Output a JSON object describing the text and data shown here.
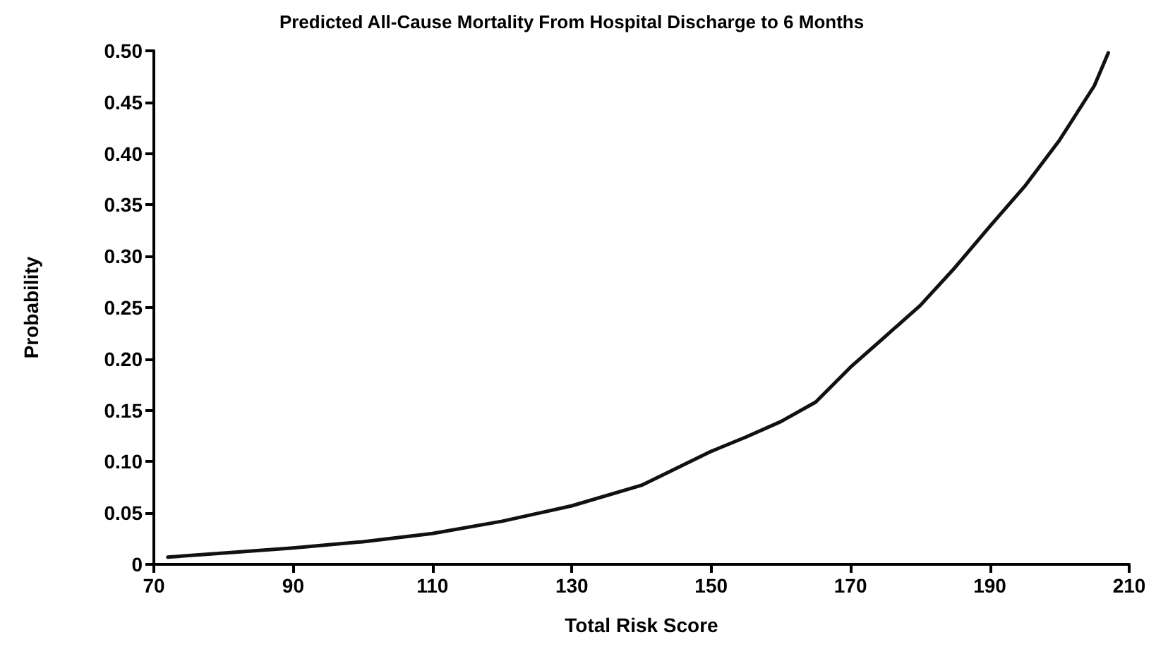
{
  "chart_data": {
    "type": "line",
    "title": "Predicted All-Cause Mortality From Hospital Discharge to 6 Months",
    "xlabel": "Total Risk Score",
    "ylabel": "Probability",
    "x": [
      72,
      80,
      90,
      100,
      110,
      120,
      130,
      140,
      150,
      155,
      160,
      165,
      170,
      175,
      180,
      185,
      190,
      195,
      200,
      205,
      207
    ],
    "series": [
      {
        "color": "#111111",
        "values": [
          0.007,
          0.011,
          0.016,
          0.022,
          0.03,
          0.042,
          0.057,
          0.077,
          0.11,
          0.124,
          0.139,
          0.158,
          0.192,
          0.222,
          0.252,
          0.289,
          0.329,
          0.368,
          0.413,
          0.466,
          0.498
        ]
      }
    ],
    "xlim": [
      70,
      210
    ],
    "xticks": [
      70,
      90,
      110,
      130,
      150,
      170,
      190,
      210
    ],
    "ylim": [
      0,
      0.5
    ],
    "yticks": [
      {
        "value": 0,
        "label": "0"
      },
      {
        "value": 0.05,
        "label": "0.05"
      },
      {
        "value": 0.1,
        "label": "0.10"
      },
      {
        "value": 0.15,
        "label": "0.15"
      },
      {
        "value": 0.2,
        "label": "0.20"
      },
      {
        "value": 0.25,
        "label": "0.25"
      },
      {
        "value": 0.3,
        "label": "0.30"
      },
      {
        "value": 0.35,
        "label": "0.35"
      },
      {
        "value": 0.4,
        "label": "0.40"
      },
      {
        "value": 0.45,
        "label": "0.45"
      },
      {
        "value": 0.5,
        "label": "0.50"
      }
    ],
    "marker": "none",
    "line_style": "solid"
  }
}
